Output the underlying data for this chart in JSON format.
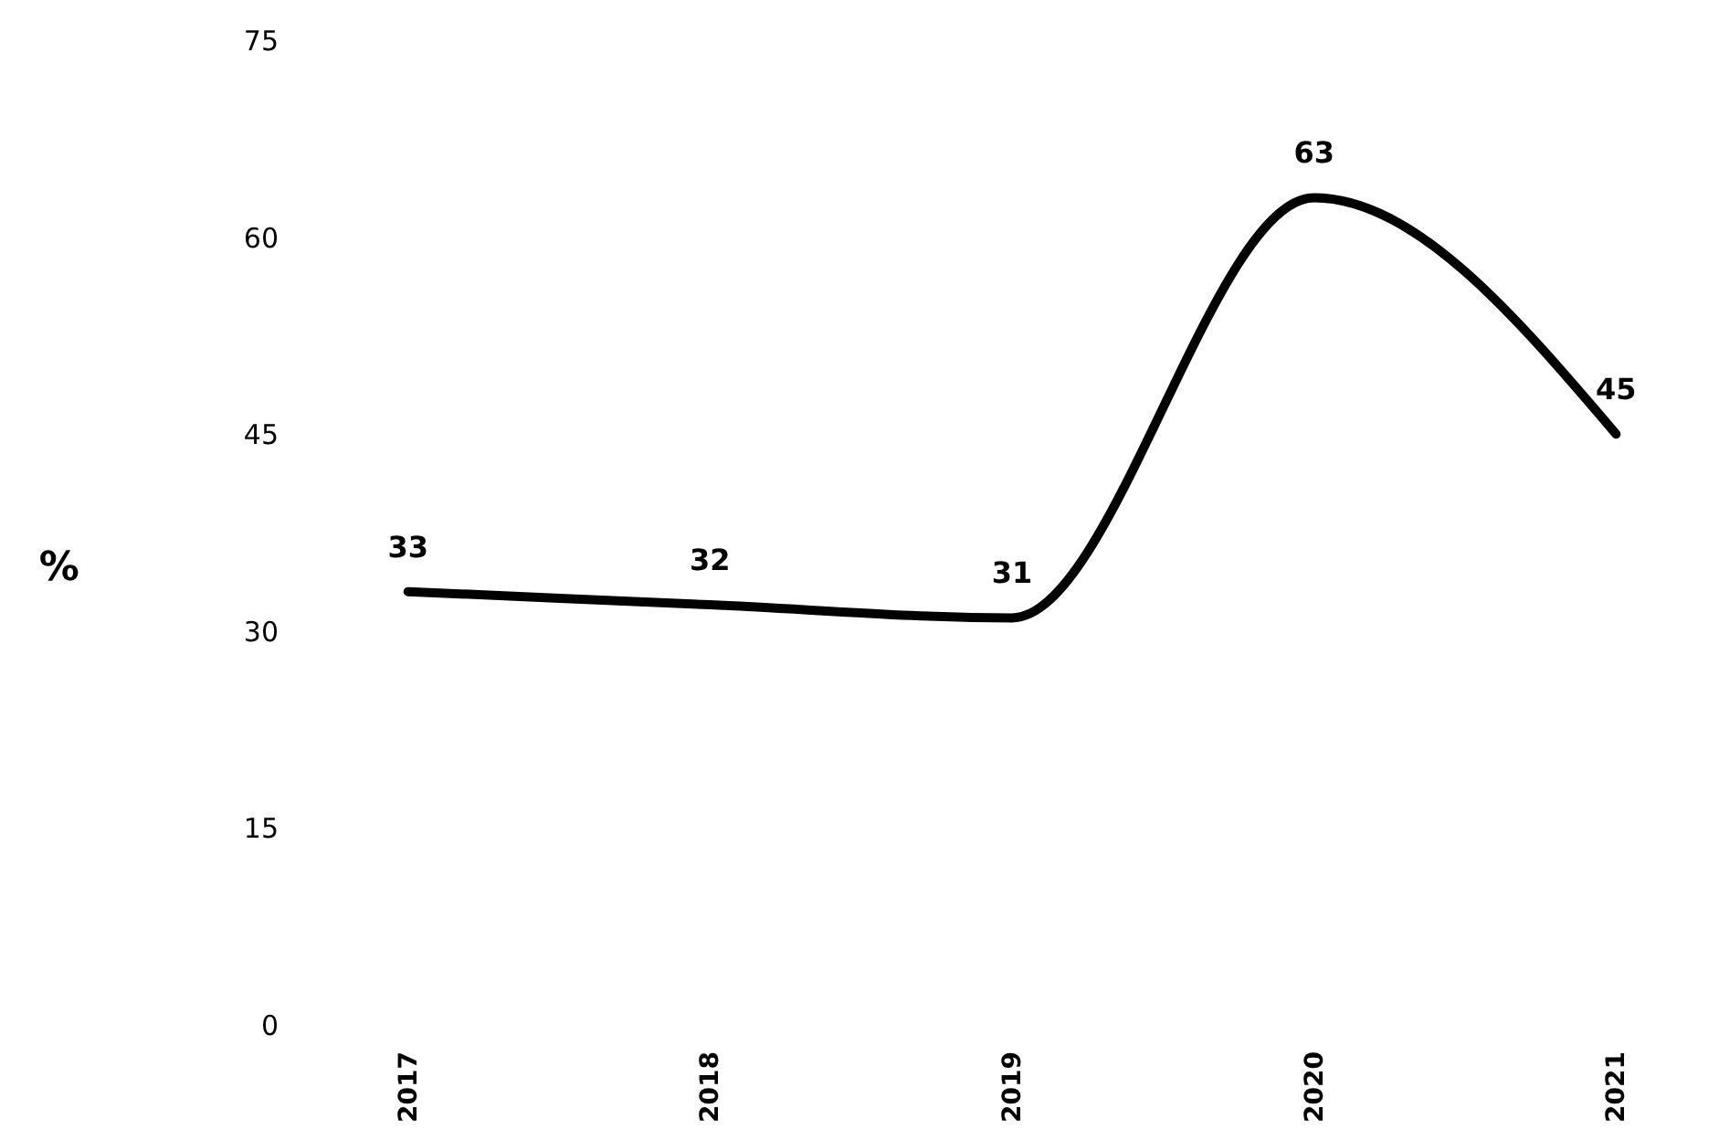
{
  "chart_data": {
    "type": "line",
    "ylabel": "%",
    "categories": [
      "2017",
      "2018",
      "2019",
      "2020",
      "2021"
    ],
    "values": [
      33,
      32,
      31,
      63,
      45
    ],
    "color": "#000000",
    "ylim": [
      0,
      75
    ],
    "yticks": [
      0,
      15,
      30,
      45,
      60,
      75
    ],
    "data_labels": true
  }
}
